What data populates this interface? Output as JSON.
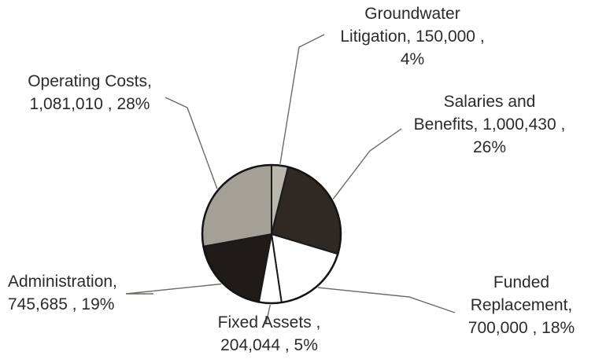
{
  "chart_data": {
    "type": "pie",
    "title": "",
    "slices": [
      {
        "label": "Groundwater Litigation",
        "value": 150000,
        "value_text": "150,000",
        "percent": 4,
        "percent_text": "4%",
        "color": "#b9b6ad",
        "label_lines": [
          "Groundwater",
          "Litigation, 150,000 ,",
          "4%"
        ]
      },
      {
        "label": "Salaries and Benefits",
        "value": 1000430,
        "value_text": "1,000,430",
        "percent": 26,
        "percent_text": "26%",
        "color": "#2f2823",
        "label_lines": [
          "Salaries and",
          "Benefits, 1,000,430 ,",
          "26%"
        ]
      },
      {
        "label": "Funded Replacement",
        "value": 700000,
        "value_text": "700,000",
        "percent": 18,
        "percent_text": "18%",
        "color": "#ffffff",
        "label_lines": [
          "Funded",
          "Replacement,",
          "700,000 , 18%"
        ]
      },
      {
        "label": "Fixed Assets",
        "value": 204044,
        "value_text": "204,044",
        "percent": 5,
        "percent_text": "5%",
        "color": "#ffffff",
        "label_lines": [
          "Fixed Assets ,",
          "204,044 , 5%"
        ]
      },
      {
        "label": "Administration",
        "value": 745685,
        "value_text": "745,685",
        "percent": 19,
        "percent_text": "19%",
        "color": "#1e1b18",
        "label_lines": [
          "Administration,",
          "745,685 , 19%"
        ]
      },
      {
        "label": "Operating Costs",
        "value": 1081010,
        "value_text": "1,081,010",
        "percent": 28,
        "percent_text": "28%",
        "color": "#a3a098",
        "label_lines": [
          "Operating Costs,",
          "1,081,010 , 28%"
        ]
      }
    ],
    "start": "12 o'clock",
    "direction": "clockwise",
    "legend": "none",
    "labels": "outside-with-leader-lines"
  }
}
